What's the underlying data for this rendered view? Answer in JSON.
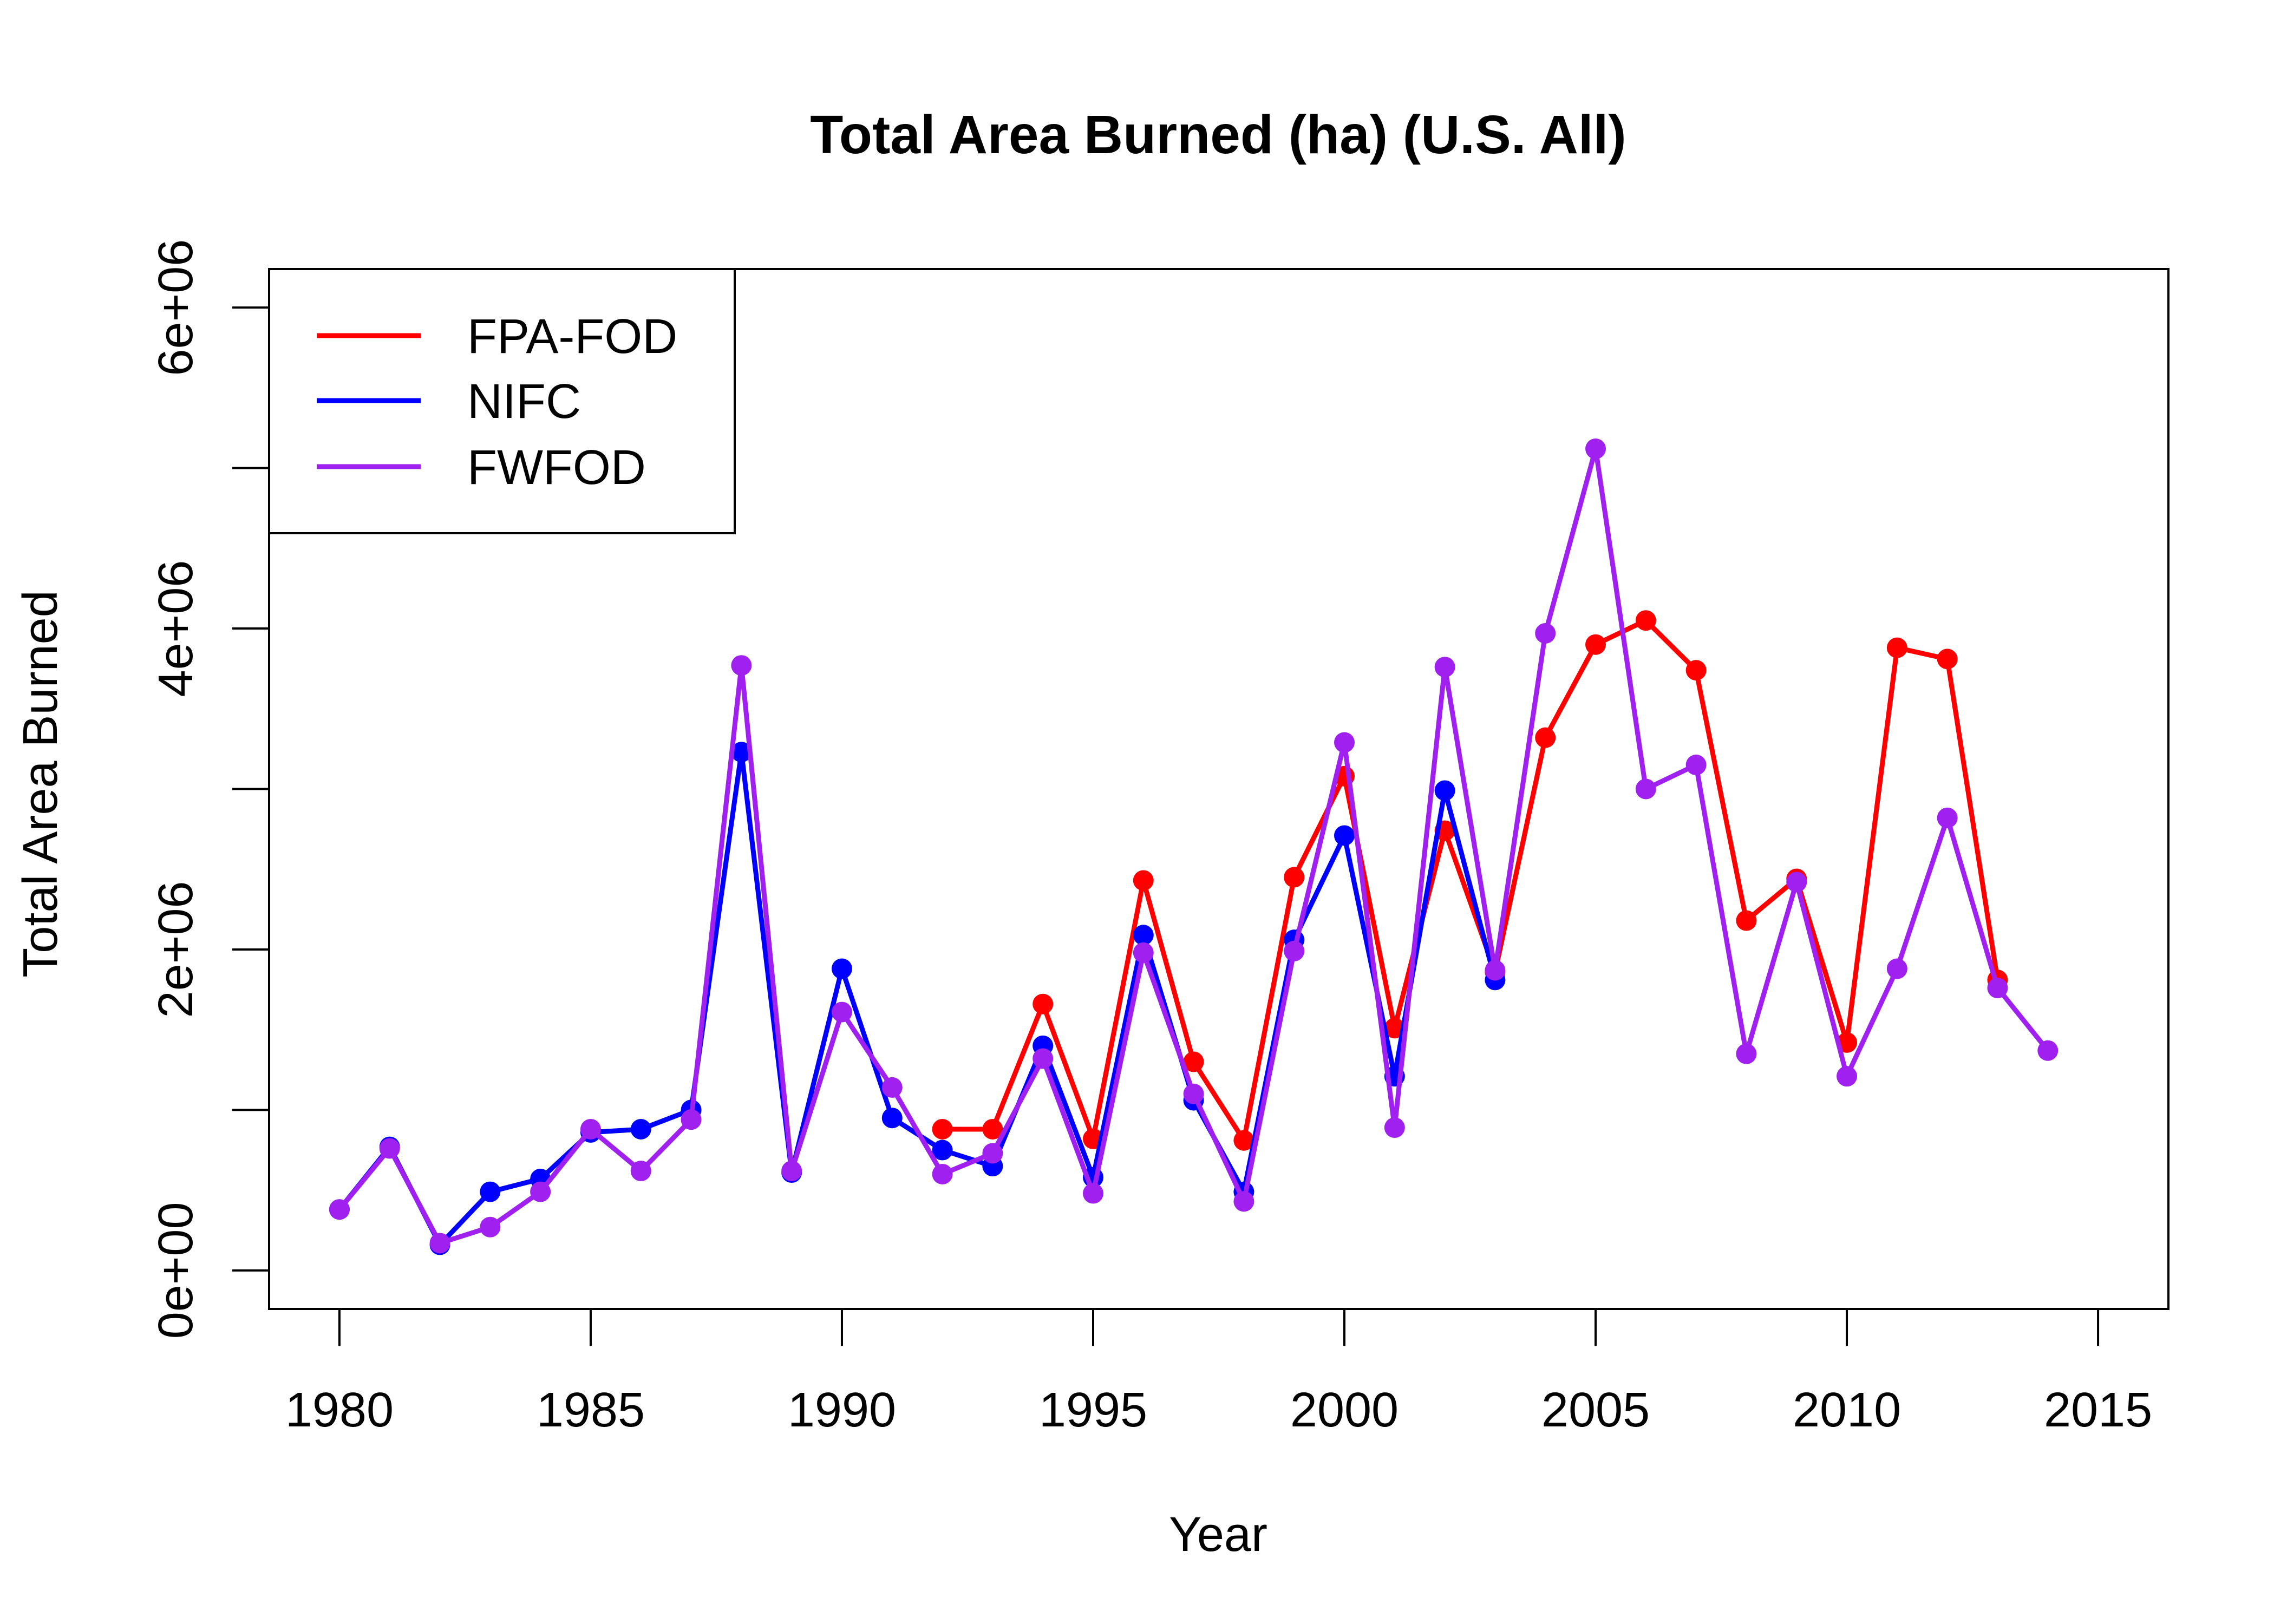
{
  "chart_data": {
    "type": "line",
    "title": "Total Area Burned (ha) (U.S. All)",
    "xlabel": "Year",
    "ylabel": "Total Area Burned",
    "xlim": [
      1978.6,
      2016.4
    ],
    "ylim": [
      -240000,
      6240000
    ],
    "x_ticks": [
      1980,
      1985,
      1990,
      1995,
      2000,
      2005,
      2010,
      2015
    ],
    "x_tick_labels": [
      "1980",
      "1985",
      "1990",
      "1995",
      "2000",
      "2005",
      "2010",
      "2015"
    ],
    "y_ticks": [
      0,
      1000000,
      2000000,
      3000000,
      4000000,
      5000000,
      6000000
    ],
    "y_tick_labels": [
      "0e+00",
      "",
      "2e+06",
      "",
      "4e+06",
      "",
      "6e+06"
    ],
    "legend": {
      "position": "top-left",
      "entries": [
        {
          "label": "FPA-FOD",
          "color": "#ff0000"
        },
        {
          "label": "NIFC",
          "color": "#0000ff"
        },
        {
          "label": "FWFOD",
          "color": "#a020f0"
        }
      ]
    },
    "series": [
      {
        "name": "FPA-FOD",
        "color": "#ff0000",
        "x": [
          1992,
          1993,
          1994,
          1995,
          1996,
          1997,
          1998,
          1999,
          2000,
          2001,
          2002,
          2003,
          2004,
          2005,
          2006,
          2007,
          2008,
          2009,
          2010,
          2011,
          2012,
          2013
        ],
        "y": [
          880000,
          880000,
          1660000,
          820000,
          2430000,
          1300000,
          810000,
          2450000,
          3080000,
          1510000,
          2740000,
          1860000,
          3320000,
          3900000,
          4050000,
          3740000,
          2180000,
          2440000,
          1420000,
          3880000,
          3810000,
          1810000
        ]
      },
      {
        "name": "NIFC",
        "color": "#0000ff",
        "x": [
          1980,
          1981,
          1982,
          1983,
          1984,
          1985,
          1986,
          1987,
          1988,
          1989,
          1990,
          1991,
          1992,
          1993,
          1994,
          1995,
          1996,
          1997,
          1998,
          1999,
          2000,
          2001,
          2002,
          2003
        ],
        "y": [
          380000,
          770000,
          160000,
          490000,
          570000,
          860000,
          880000,
          1000000,
          3230000,
          610000,
          1880000,
          950000,
          750000,
          650000,
          1400000,
          580000,
          2090000,
          1060000,
          490000,
          2060000,
          2710000,
          1210000,
          2990000,
          1810000
        ]
      },
      {
        "name": "FWFOD",
        "color": "#a020f0",
        "x": [
          1980,
          1981,
          1982,
          1983,
          1984,
          1985,
          1986,
          1987,
          1988,
          1989,
          1990,
          1991,
          1992,
          1993,
          1994,
          1995,
          1996,
          1997,
          1998,
          1999,
          2000,
          2001,
          2002,
          2003,
          2004,
          2005,
          2006,
          2007,
          2008,
          2009,
          2010,
          2011,
          2012,
          2013,
          2014
        ],
        "y": [
          380000,
          760000,
          170000,
          270000,
          490000,
          880000,
          620000,
          940000,
          3770000,
          620000,
          1610000,
          1140000,
          600000,
          730000,
          1320000,
          480000,
          1980000,
          1100000,
          430000,
          1990000,
          3290000,
          890000,
          3760000,
          1870000,
          3970000,
          5120000,
          3000000,
          3150000,
          1350000,
          2420000,
          1210000,
          1880000,
          2820000,
          1760000,
          1370000
        ]
      }
    ]
  }
}
